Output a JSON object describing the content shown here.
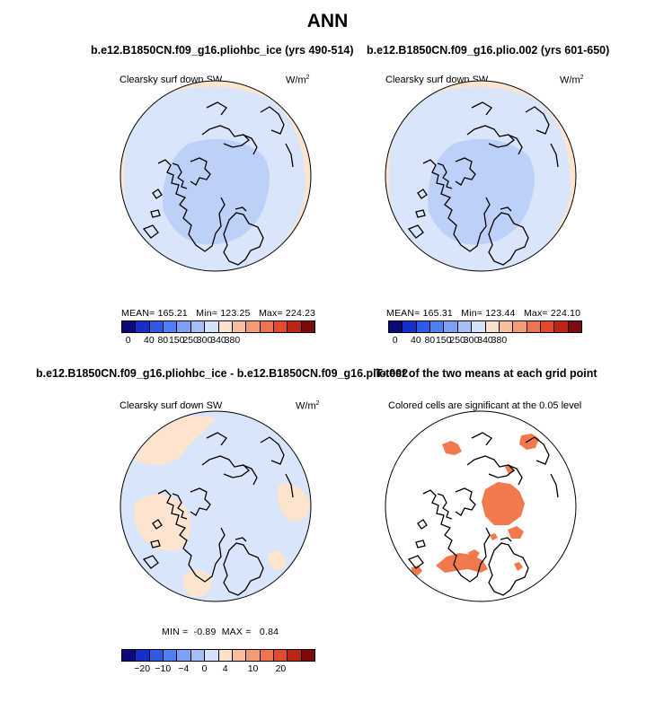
{
  "page": {
    "title": "ANN"
  },
  "panels": [
    {
      "case_title": "b.e12.B1850CN.f09_g16.pliohbc_ice (yrs 490-514)",
      "variable": "Clearsky surf down SW",
      "units": "W/m",
      "units_exp": "2",
      "stats": {
        "mean_label": "MEAN=",
        "mean": "165.21",
        "min_label": "Min=",
        "min": "123.25",
        "max_label": "Max=",
        "max": "224.23"
      }
    },
    {
      "case_title": "b.e12.B1850CN.f09_g16.plio.002 (yrs 601-650)",
      "variable": "Clearsky surf down SW",
      "units": "W/m",
      "units_exp": "2",
      "stats": {
        "mean_label": "MEAN=",
        "mean": "165.31",
        "min_label": "Min=",
        "min": "123.44",
        "max_label": "Max=",
        "max": "224.10"
      }
    },
    {
      "case_title": "b.e12.B1850CN.f09_g16.pliohbc_ice - b.e12.B1850CN.f09_g16.plio.002",
      "variable": "Clearsky surf down SW",
      "units": "W/m",
      "units_exp": "2",
      "stats": {
        "min_label": "MIN =",
        "min": "-0.89",
        "max_label": "MAX =",
        "max": "0.84"
      }
    },
    {
      "case_title": "T-test of the two means at each grid point",
      "variable": "Colored cells are significant at the 0.05 level"
    }
  ],
  "colorbars": {
    "abs": {
      "colors": [
        "#0a0a7a",
        "#1430c8",
        "#2e5ae6",
        "#4f7ff0",
        "#7ba0f5",
        "#a6bff7",
        "#d4e2f9",
        "#fbe1cc",
        "#f8bd9c",
        "#f39b76",
        "#ee7452",
        "#e24a2c",
        "#bb2616",
        "#7e0a0a"
      ],
      "labels": [
        "0",
        "40",
        "80",
        "150",
        "250",
        "300",
        "340",
        "380"
      ]
    },
    "diff": {
      "colors": [
        "#0a0a7a",
        "#1430c8",
        "#2e5ae6",
        "#4f7ff0",
        "#7ba0f5",
        "#a6bff7",
        "#d4e2f9",
        "#fbe1cc",
        "#f8bd9c",
        "#f39b76",
        "#ee7452",
        "#e24a2c",
        "#bb2616",
        "#7e0a0a"
      ],
      "labels": [
        "-20",
        "-10",
        "-4",
        "0",
        "4",
        "10",
        "20"
      ]
    }
  },
  "colors": {
    "ocean_light": "#d8e5fb",
    "ocean_mid": "#bcd0f8",
    "warm_land": "#fde4cf",
    "significant": "#f07a4c",
    "coast": "#000000"
  }
}
